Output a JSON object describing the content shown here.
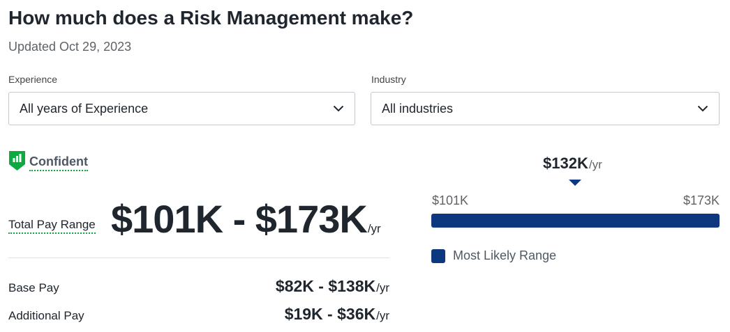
{
  "header": {
    "title": "How much does a Risk Management make?",
    "updated": "Updated Oct 29, 2023"
  },
  "filters": {
    "experience": {
      "label": "Experience",
      "selected": "All years of Experience",
      "icon": "chevron-down-icon"
    },
    "industry": {
      "label": "Industry",
      "selected": "All industries",
      "icon": "chevron-down-icon"
    }
  },
  "confidence": {
    "label": "Confident",
    "icon": "confidence-shield-icon",
    "color": "#0caa41"
  },
  "total_pay": {
    "label": "Total Pay Range",
    "range": "$101K - $173K",
    "unit": "/yr"
  },
  "base_pay": {
    "label": "Base Pay",
    "range": "$82K - $138K",
    "unit": "/yr"
  },
  "additional_pay": {
    "label": "Additional Pay",
    "range": "$19K - $36K",
    "unit": "/yr"
  },
  "range_chart": {
    "median": "$132K",
    "median_unit": "/yr",
    "min_label": "$101K",
    "max_label": "$173K",
    "legend": "Most Likely Range",
    "bar_color": "#0d3880"
  }
}
